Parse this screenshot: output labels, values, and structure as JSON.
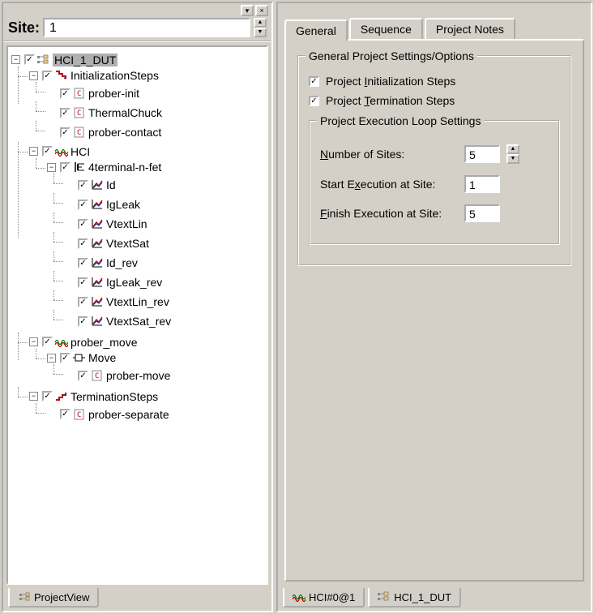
{
  "colors": {
    "bg": "#d4d0c8",
    "white": "#ffffff",
    "tree_line": "#888888",
    "highlight": "#b0b0b0",
    "red": "#c00000",
    "blue": "#1040a0",
    "green": "#008000",
    "teal": "#008080"
  },
  "left": {
    "site_label": "Site:",
    "site_value": "1",
    "bottom_tab": "ProjectView",
    "tree": {
      "root": {
        "label": "HCI_1_DUT",
        "checked": true,
        "icon": "proj"
      },
      "init": {
        "label": "InitializationSteps",
        "checked": true,
        "icon": "steps-down",
        "children": [
          {
            "label": "prober-init",
            "checked": true,
            "icon": "doc"
          },
          {
            "label": "ThermalChuck",
            "checked": true,
            "icon": "doc"
          },
          {
            "label": "prober-contact",
            "checked": true,
            "icon": "doc"
          }
        ]
      },
      "hci": {
        "label": "HCI",
        "checked": true,
        "icon": "wave",
        "fet": {
          "label": "4terminal-n-fet",
          "checked": true,
          "icon": "fet",
          "tests": [
            {
              "label": "Id",
              "checked": true,
              "icon": "graph"
            },
            {
              "label": "IgLeak",
              "checked": true,
              "icon": "graph"
            },
            {
              "label": "VtextLin",
              "checked": true,
              "icon": "graph"
            },
            {
              "label": "VtextSat",
              "checked": true,
              "icon": "graph"
            },
            {
              "label": "Id_rev",
              "checked": true,
              "icon": "graph"
            },
            {
              "label": "IgLeak_rev",
              "checked": true,
              "icon": "graph"
            },
            {
              "label": "VtextLin_rev",
              "checked": true,
              "icon": "graph"
            },
            {
              "label": "VtextSat_rev",
              "checked": true,
              "icon": "graph"
            }
          ]
        }
      },
      "probermove": {
        "label": "prober_move",
        "checked": true,
        "icon": "wave",
        "move": {
          "label": "Move",
          "checked": true,
          "icon": "block",
          "children": [
            {
              "label": "prober-move",
              "checked": true,
              "icon": "doc"
            }
          ]
        }
      },
      "term": {
        "label": "TerminationSteps",
        "checked": true,
        "icon": "steps-up",
        "children": [
          {
            "label": "prober-separate",
            "checked": true,
            "icon": "doc"
          }
        ]
      }
    }
  },
  "right": {
    "tabs": [
      "General",
      "Sequence",
      "Project Notes"
    ],
    "active_tab": 0,
    "group1_title": "General Project Settings/Options",
    "chk_init": {
      "label_pre": "Project ",
      "und": "I",
      "label_post": "nitialization Steps",
      "checked": true
    },
    "chk_term": {
      "label_pre": "Project ",
      "und": "T",
      "label_post": "ermination Steps",
      "checked": true
    },
    "group2_title": "Project Execution Loop Settings",
    "num_sites": {
      "und": "N",
      "label": "umber of Sites:",
      "value": "5"
    },
    "start_site": {
      "label_pre": "Start E",
      "und": "x",
      "label_post": "ecution at Site:",
      "value": "1"
    },
    "finish_site": {
      "und": "F",
      "label": "inish Execution at Site:",
      "value": "5"
    },
    "bottom_tabs": [
      {
        "label": "HCI#0@1",
        "icon": "wave"
      },
      {
        "label": "HCI_1_DUT",
        "icon": "proj"
      }
    ]
  }
}
